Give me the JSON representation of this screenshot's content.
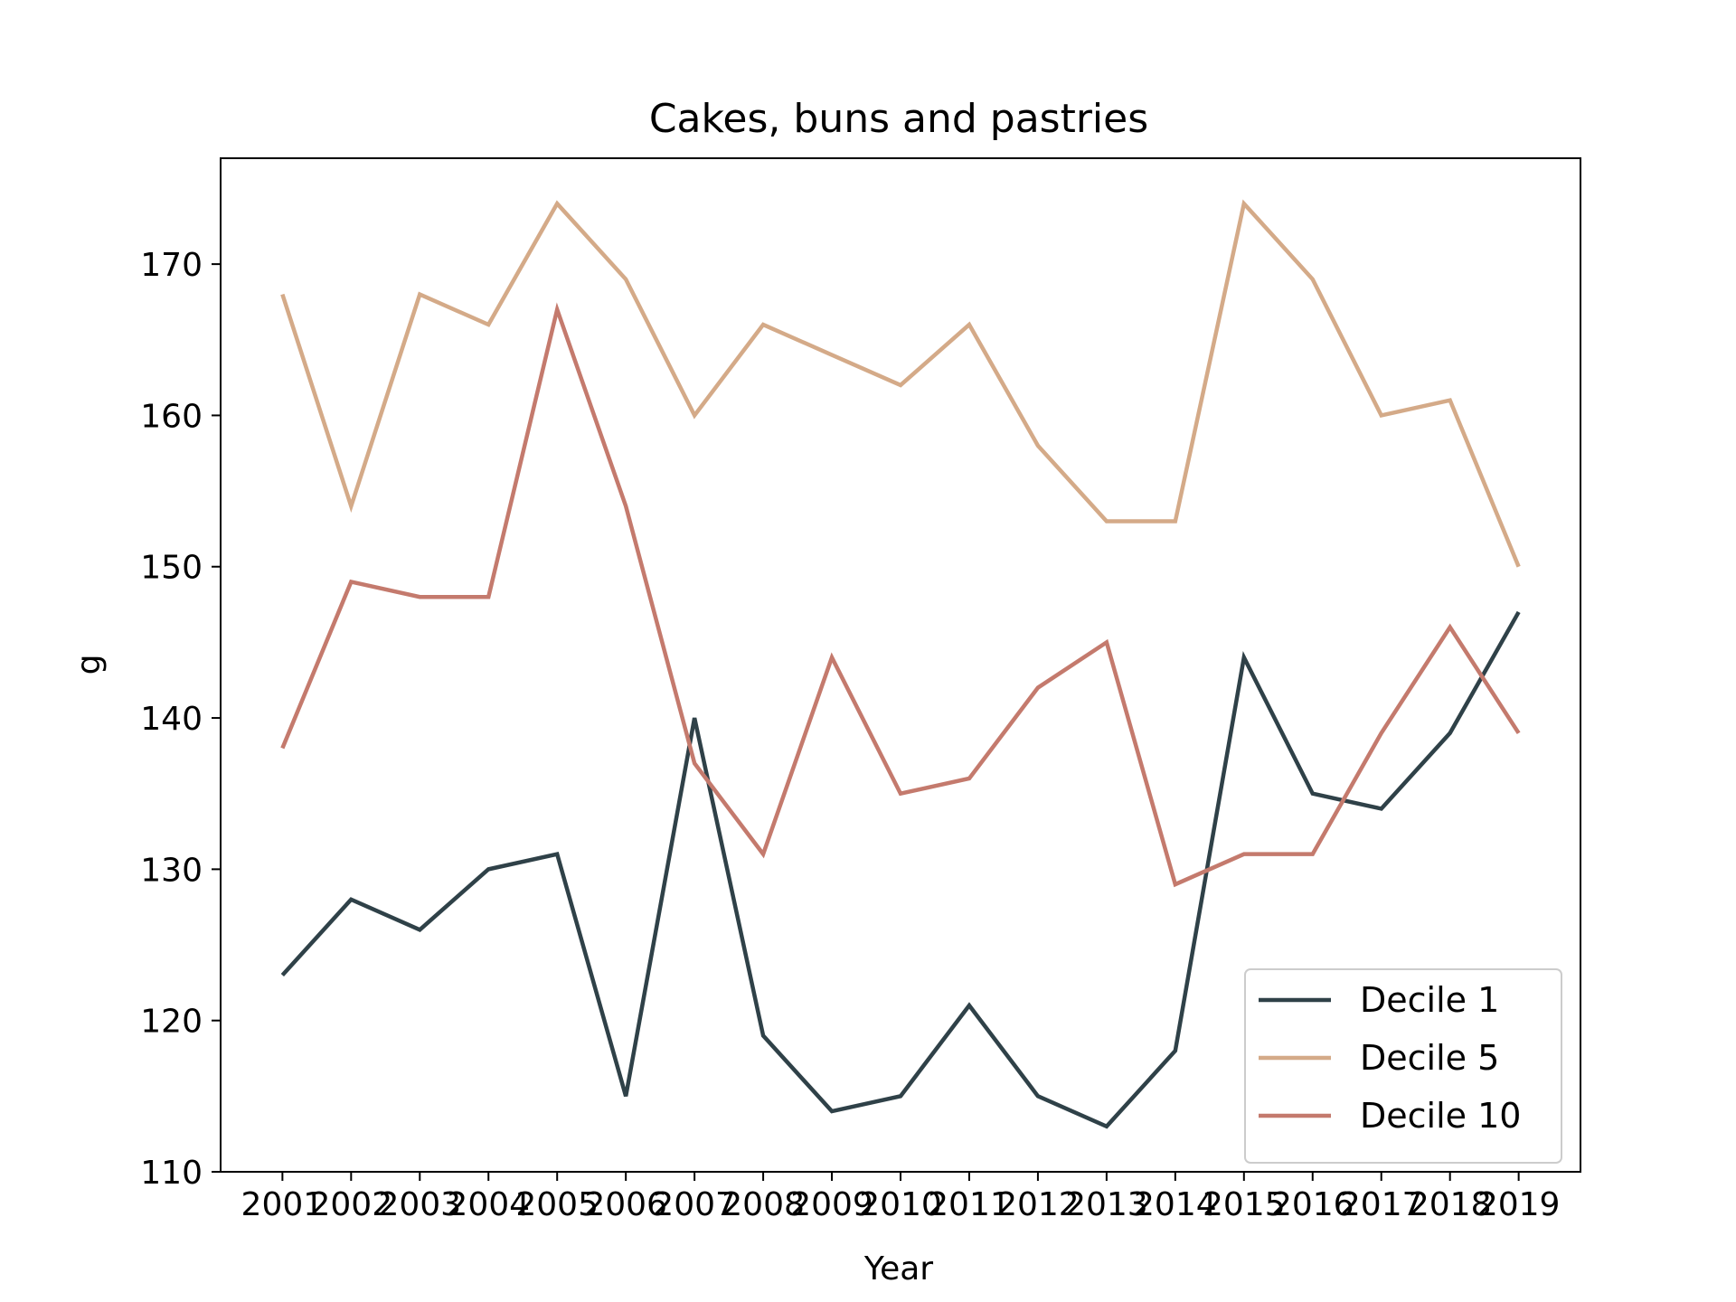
{
  "chart_data": {
    "type": "line",
    "title": "Cakes, buns and pastries",
    "xlabel": "Year",
    "ylabel": "g",
    "x": [
      2001,
      2002,
      2003,
      2004,
      2005,
      2006,
      2007,
      2008,
      2009,
      2010,
      2011,
      2012,
      2013,
      2014,
      2015,
      2016,
      2017,
      2018,
      2019
    ],
    "x_tick_labels": [
      "2001",
      "2002",
      "2003",
      "2004",
      "2005",
      "2006",
      "2007",
      "2008",
      "2009",
      "2010",
      "2011",
      "2012",
      "2013",
      "2014",
      "2015",
      "2016",
      "2017",
      "2018",
      "2019"
    ],
    "y_ticks": [
      110,
      120,
      130,
      140,
      150,
      160,
      170
    ],
    "y_tick_labels": [
      "110",
      "120",
      "130",
      "140",
      "150",
      "160",
      "170"
    ],
    "ylim": [
      110,
      177
    ],
    "grid": false,
    "legend_position": "lower-right",
    "series": [
      {
        "name": "Decile 1",
        "color": "#2f4148",
        "values": [
          123,
          128,
          126,
          130,
          131,
          115,
          140,
          119,
          114,
          115,
          121,
          115,
          113,
          118,
          144,
          135,
          134,
          139,
          147
        ]
      },
      {
        "name": "Decile 5",
        "color": "#d4aa88",
        "values": [
          168,
          154,
          168,
          166,
          174,
          169,
          160,
          166,
          164,
          162,
          166,
          158,
          153,
          153,
          174,
          169,
          160,
          161,
          150
        ]
      },
      {
        "name": "Decile 10",
        "color": "#c47a6d",
        "values": [
          138,
          149,
          148,
          148,
          167,
          154,
          137,
          131,
          144,
          135,
          136,
          142,
          145,
          129,
          131,
          131,
          139,
          146,
          139
        ]
      }
    ]
  }
}
